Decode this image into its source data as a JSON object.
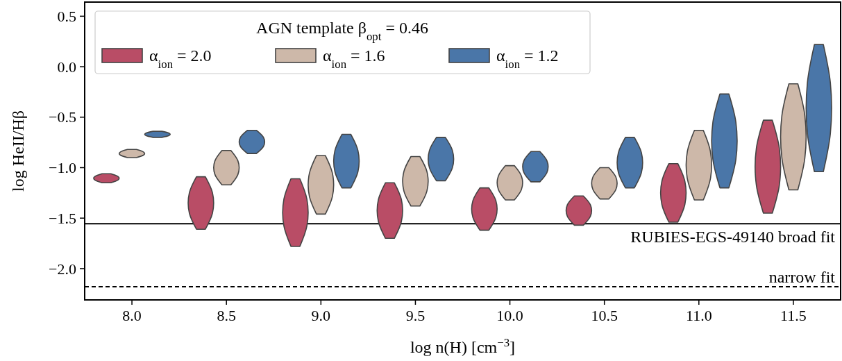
{
  "chart_data": {
    "type": "bar",
    "xlabel": "log n(H) [cm$^{−3}$]",
    "ylabel": "log HeII/Hβ",
    "legend_title": "AGN template β$_{opt}$ = 0.46",
    "categories": [
      "8.0",
      "8.5",
      "9.0",
      "9.5",
      "10.0",
      "10.5",
      "11.0",
      "11.5"
    ],
    "series": [
      {
        "name": "α$_{ion}$ = 2.0",
        "color": "#b94d66",
        "base": [
          -1.15,
          -1.61,
          -1.78,
          -1.7,
          -1.62,
          -1.57,
          -1.54,
          -1.45
        ],
        "values": [
          0.09,
          0.52,
          0.67,
          0.55,
          0.42,
          0.29,
          0.58,
          0.92
        ]
      },
      {
        "name": "α$_{ion}$ = 1.6",
        "color": "#cdb8a9",
        "base": [
          -0.9,
          -1.17,
          -1.46,
          -1.38,
          -1.32,
          -1.31,
          -1.32,
          -1.22
        ],
        "values": [
          0.08,
          0.34,
          0.58,
          0.49,
          0.34,
          0.31,
          0.69,
          1.05
        ]
      },
      {
        "name": "α$_{ion}$ = 1.2",
        "color": "#4a76a8",
        "base": [
          -0.7,
          -0.86,
          -1.2,
          -1.13,
          -1.14,
          -1.2,
          -1.2,
          -1.04
        ],
        "values": [
          0.06,
          0.23,
          0.53,
          0.43,
          0.3,
          0.5,
          0.93,
          1.26
        ]
      }
    ],
    "ylim": [
      -2.31,
      0.64
    ],
    "yticks": [
      {
        "value": 0.5,
        "label": "0.5"
      },
      {
        "value": 0,
        "label": "0.0"
      },
      {
        "value": -0.5,
        "label": "−0.5"
      },
      {
        "value": -1.0,
        "label": "−1.0"
      },
      {
        "value": -1.5,
        "label": "−1.5"
      },
      {
        "value": -2.0,
        "label": "−2.0"
      }
    ],
    "ref_lines": [
      {
        "axis": "y",
        "value": -1.555,
        "label": "RUBIES-EGS-49140 broad fit",
        "color": "#000000",
        "line_style": "solid"
      },
      {
        "axis": "y",
        "value": -2.18,
        "label": "narrow fit",
        "color": "#000000",
        "line_style": "dashed"
      }
    ],
    "legend": "top left"
  }
}
